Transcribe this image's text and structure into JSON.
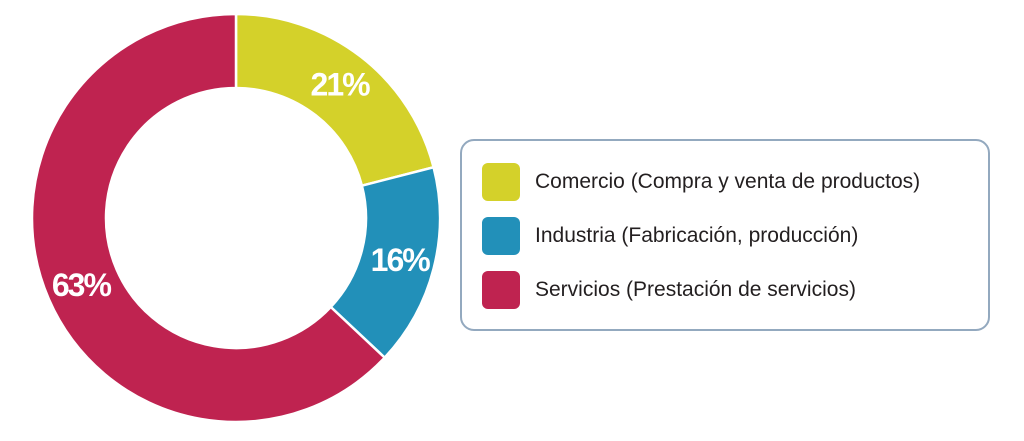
{
  "chart_data": {
    "type": "pie",
    "style": "donut",
    "title": "",
    "categories": [
      "Comercio (Compra y venta de productos)",
      "Industria (Fabricación, producción)",
      "Servicios (Prestación de servicios)"
    ],
    "values": [
      21,
      16,
      63
    ],
    "data_labels": [
      "21%",
      "16%",
      "63%"
    ],
    "colors": [
      "#d4d12a",
      "#2290b9",
      "#bf2350"
    ],
    "legend_placement": "right"
  }
}
